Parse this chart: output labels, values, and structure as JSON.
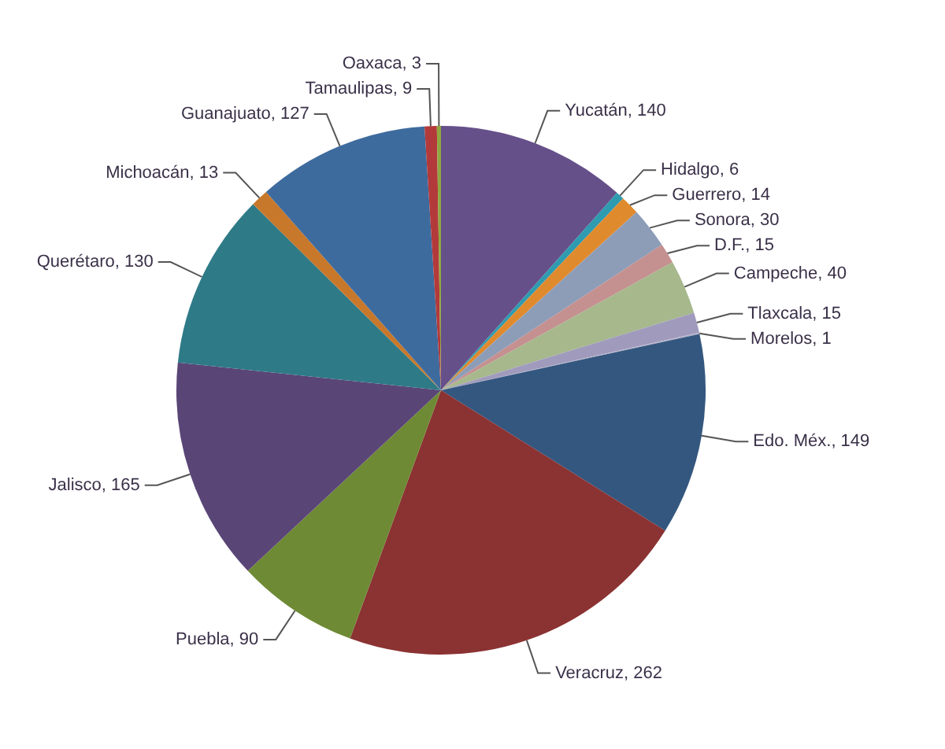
{
  "chart_data": {
    "type": "pie",
    "categories": [
      "Yucatán, 140",
      "Hidalgo, 6",
      "Guerrero, 14",
      "Sonora, 30",
      "D.F., 15",
      "Campeche, 40",
      "Tlaxcala, 15",
      "Morelos, 1",
      "Edo. Méx., 149",
      "Veracruz, 262",
      "Puebla, 90",
      "Jalisco, 165",
      "Querétaro, 130",
      "Michoacán, 13",
      "Guanajuato, 127",
      "Tamaulipas, 9",
      "Oaxaca, 3"
    ],
    "values": [
      140,
      6,
      14,
      30,
      15,
      40,
      15,
      1,
      149,
      262,
      90,
      165,
      130,
      13,
      127,
      9,
      3
    ],
    "colors": [
      "#66508a",
      "#2e9bb0",
      "#e08a2e",
      "#8d9db8",
      "#c49090",
      "#a6b88c",
      "#a09bbd",
      "#b4b0c8",
      "#34577f",
      "#8b3232",
      "#6e8a35",
      "#5a4577",
      "#2f7a87",
      "#c8782a",
      "#3e6b9e",
      "#b23a3a",
      "#8fa840"
    ],
    "legend": false
  }
}
